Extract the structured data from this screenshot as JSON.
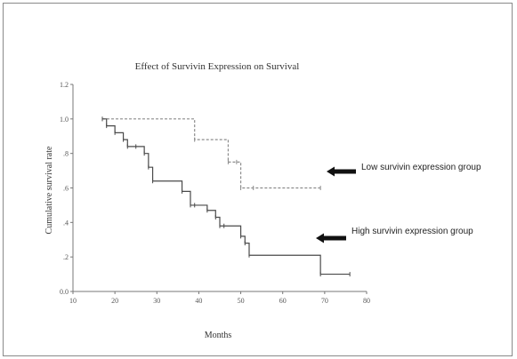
{
  "chart_data": {
    "type": "line",
    "title": "Effect of Survivin Expression on Survival",
    "xlabel": "Months",
    "ylabel": "Cumulative survival rate",
    "xlim": [
      10,
      80
    ],
    "ylim": [
      0.0,
      1.2
    ],
    "xticks": [
      10,
      20,
      30,
      40,
      50,
      60,
      70,
      80
    ],
    "xtick_labels": [
      "10",
      "20",
      "30",
      "40",
      "50",
      "60",
      "70",
      "80"
    ],
    "yticks": [
      0.0,
      0.2,
      0.4,
      0.6,
      0.8,
      1.0,
      1.2
    ],
    "ytick_labels": [
      "0.0",
      ".2",
      ".4",
      ".6",
      ".8",
      "1.0",
      "1.2"
    ],
    "grid": false,
    "legend": "none",
    "series": [
      {
        "name": "Low survivin expression group",
        "style": "dashed-step",
        "color": "#8c8c8c",
        "x": [
          17,
          39,
          47,
          49,
          50,
          53,
          69
        ],
        "y": [
          1.0,
          0.88,
          0.75,
          0.75,
          0.6,
          0.6,
          0.6
        ]
      },
      {
        "name": "High survivin expression group",
        "style": "step",
        "color": "#4a4a4a",
        "x": [
          17,
          18,
          20,
          22,
          23,
          25,
          27,
          28,
          29,
          36,
          38,
          39,
          42,
          44,
          45,
          46,
          50,
          51,
          52,
          69,
          76
        ],
        "y": [
          1.0,
          0.96,
          0.92,
          0.88,
          0.84,
          0.84,
          0.8,
          0.72,
          0.64,
          0.58,
          0.5,
          0.5,
          0.47,
          0.43,
          0.38,
          0.38,
          0.32,
          0.28,
          0.21,
          0.1,
          0.1
        ]
      }
    ],
    "annotations": [
      {
        "text": "Low survivin expression group",
        "target_series": 0
      },
      {
        "text": "High survivin expression group",
        "target_series": 1
      }
    ]
  },
  "colors": {
    "arrow": "#111111",
    "axis": "#777777"
  }
}
